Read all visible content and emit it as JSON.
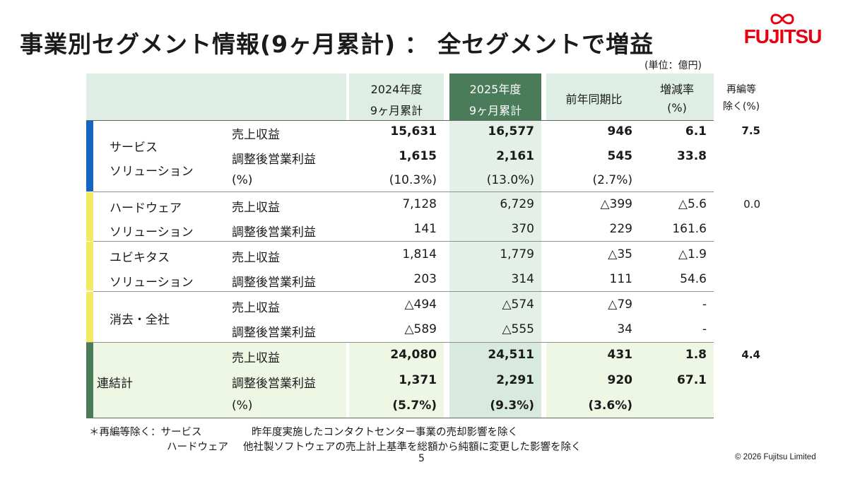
{
  "title": "事業別セグメント情報(9ヶ月累計) ： 全セグメントで増益",
  "logo": "FUJITSU",
  "unit": "(単位：億円)",
  "colors": {
    "service": "#1565c0",
    "hardware": "#f3ea5f",
    "ubiquitous": "#f3ea5f",
    "elimination": "#f3ea5f",
    "consolidated": "#4a7c59",
    "header_bg": "#deeee4",
    "fy2025_header": "#4a7c59"
  },
  "headers": {
    "fy2024_l1": "2024年度",
    "fy2024_l2": "9ヶ月累計",
    "fy2025_l1": "2025年度",
    "fy2025_l2": "9ヶ月累計",
    "yoy": "前年同期比",
    "rate_l1": "増減率",
    "rate_l2": "(%)",
    "excl_l1": "再編等",
    "excl_l2": "除く(%)"
  },
  "segments": {
    "service": {
      "name1": "サービス",
      "name2": "ソリューション",
      "rows": [
        {
          "label": "売上収益",
          "fy24": "15,631",
          "fy25": "16,577",
          "yoy": "946",
          "rate": "6.1",
          "excl": "7.5"
        },
        {
          "label": "調整後営業利益",
          "fy24": "1,615",
          "fy25": "2,161",
          "yoy": "545",
          "rate": "33.8"
        },
        {
          "label": "(%)",
          "fy24": "(10.3%)",
          "fy25": "(13.0%)",
          "yoy": "(2.7%)"
        }
      ]
    },
    "hardware": {
      "name1": "ハードウェア",
      "name2": "ソリューション",
      "rows": [
        {
          "label": "売上収益",
          "fy24": "7,128",
          "fy25": "6,729",
          "yoy": "△399",
          "rate": "△5.6",
          "excl": "0.0"
        },
        {
          "label": "調整後営業利益",
          "fy24": "141",
          "fy25": "370",
          "yoy": "229",
          "rate": "161.6"
        }
      ]
    },
    "ubiquitous": {
      "name1": "ユビキタス",
      "name2": "ソリューション",
      "rows": [
        {
          "label": "売上収益",
          "fy24": "1,814",
          "fy25": "1,779",
          "yoy": "△35",
          "rate": "△1.9"
        },
        {
          "label": "調整後営業利益",
          "fy24": "203",
          "fy25": "314",
          "yoy": "111",
          "rate": "54.6"
        }
      ]
    },
    "elimination": {
      "name1": "消去・全社",
      "rows": [
        {
          "label": "売上収益",
          "fy24": "△494",
          "fy25": "△574",
          "yoy": "△79",
          "rate": "-"
        },
        {
          "label": "調整後営業利益",
          "fy24": "△589",
          "fy25": "△555",
          "yoy": "34",
          "rate": "-"
        }
      ]
    },
    "consolidated": {
      "name1": "連結計",
      "rows": [
        {
          "label": "売上収益",
          "fy24": "24,080",
          "fy25": "24,511",
          "yoy": "431",
          "rate": "1.8",
          "excl": "4.4"
        },
        {
          "label": "調整後営業利益",
          "fy24": "1,371",
          "fy25": "2,291",
          "yoy": "920",
          "rate": "67.1"
        },
        {
          "label": "(%)",
          "fy24": "(5.7%)",
          "fy25": "(9.3%)",
          "yoy": "(3.6%)"
        }
      ]
    }
  },
  "footnotes": {
    "prefix": "＊再編等除く：サービス",
    "line1": "昨年度実施したコンタクトセンター事業の売却影響を除く",
    "hw_label": "ハードウェア",
    "line2": "他社製ソフトウェアの売上計上基準を総額から純額に変更した影響を除く"
  },
  "page_number": "5",
  "copyright": "© 2026 Fujitsu Limited"
}
